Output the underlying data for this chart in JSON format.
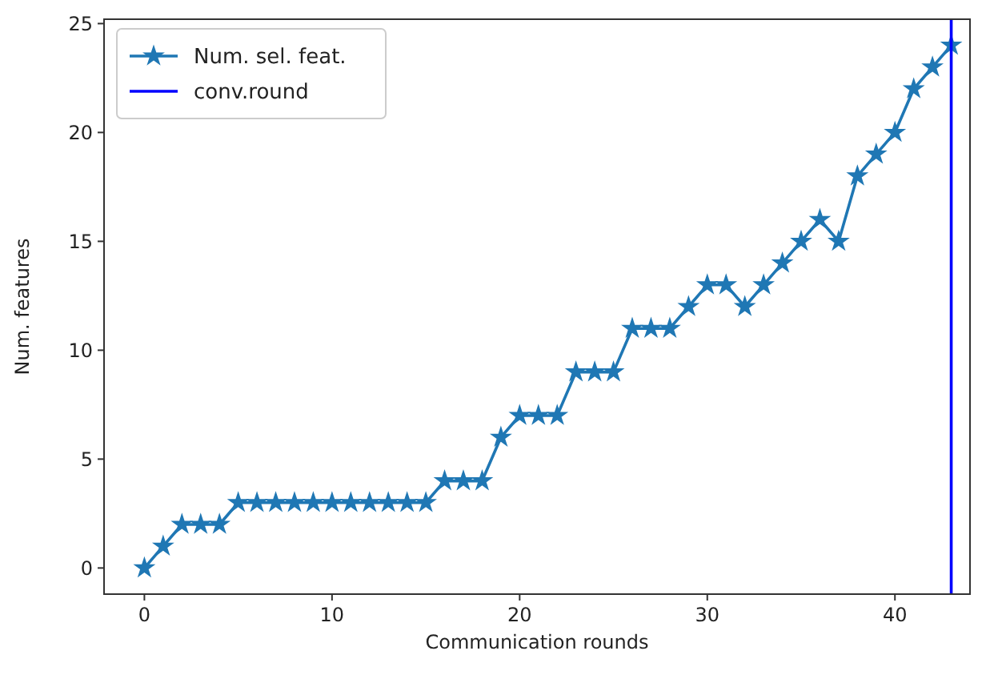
{
  "chart_data": {
    "type": "line",
    "xlabel": "Communication rounds",
    "ylabel": "Num. features",
    "x": [
      0,
      1,
      2,
      3,
      4,
      5,
      6,
      7,
      8,
      9,
      10,
      11,
      12,
      13,
      14,
      15,
      16,
      17,
      18,
      19,
      20,
      21,
      22,
      23,
      24,
      25,
      26,
      27,
      28,
      29,
      30,
      31,
      32,
      33,
      34,
      35,
      36,
      37,
      38,
      39,
      40,
      41,
      42,
      43
    ],
    "series": [
      {
        "name": "Num. sel. feat.",
        "color": "#1f77b4",
        "values": [
          0,
          1,
          2,
          2,
          2,
          3,
          3,
          3,
          3,
          3,
          3,
          3,
          3,
          3,
          3,
          3,
          4,
          4,
          4,
          6,
          7,
          7,
          7,
          9,
          9,
          9,
          11,
          11,
          11,
          12,
          13,
          13,
          12,
          13,
          14,
          15,
          16,
          15,
          18,
          19,
          20,
          22,
          23,
          24
        ]
      },
      {
        "name": "conv.round",
        "color": "#0000ff",
        "x": [
          43,
          43
        ],
        "values": [
          -1.2,
          25.2
        ],
        "marker": "none"
      }
    ],
    "xlim": [
      -2.15,
      44
    ],
    "ylim": [
      -1.2,
      25.2
    ],
    "xticks": [
      0,
      10,
      20,
      30,
      40
    ],
    "yticks": [
      0,
      5,
      10,
      15,
      20,
      25
    ],
    "marker": "star",
    "line_style": "solid",
    "legend": "top left",
    "grid": false
  }
}
